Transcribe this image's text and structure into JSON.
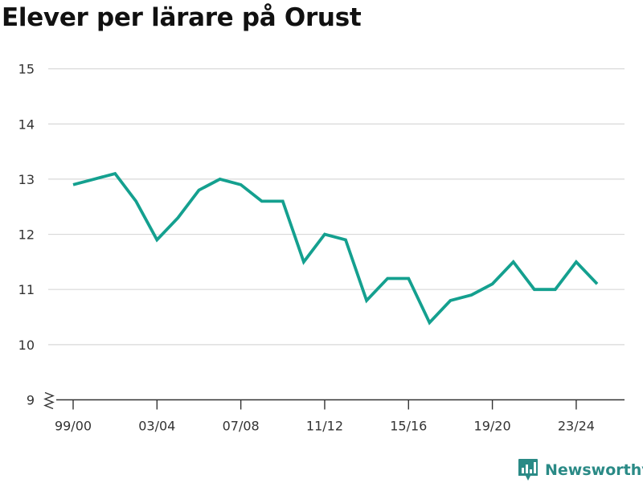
{
  "title": "Elever per lärare på Orust",
  "brand": {
    "name": "Newsworthy",
    "logo_icon": "bar-chart-speech-bubble-icon"
  },
  "colors": {
    "line": "#14a08f",
    "grid": "#d9d9d9",
    "axis": "#333333",
    "brand": "#2a8a86"
  },
  "chart_data": {
    "type": "line",
    "title": "Elever per lärare på Orust",
    "xlabel": "",
    "ylabel": "",
    "ylim": [
      9,
      15
    ],
    "y_axis_break": true,
    "grid": "horizontal",
    "yticks": [
      9,
      10,
      11,
      12,
      13,
      14,
      15
    ],
    "x_tick_labels": [
      {
        "index": 0,
        "label": "99/00"
      },
      {
        "index": 4,
        "label": "03/04"
      },
      {
        "index": 8,
        "label": "07/08"
      },
      {
        "index": 12,
        "label": "11/12"
      },
      {
        "index": 16,
        "label": "15/16"
      },
      {
        "index": 20,
        "label": "19/20"
      },
      {
        "index": 24,
        "label": "23/24"
      }
    ],
    "series": [
      {
        "values": [
          12.9,
          13.0,
          13.1,
          12.6,
          11.9,
          12.3,
          12.8,
          13.0,
          12.9,
          12.6,
          12.6,
          11.5,
          12.0,
          11.9,
          10.8,
          11.2,
          11.2,
          10.4,
          10.8,
          10.9,
          11.1,
          11.5,
          11.0,
          11.0,
          11.5,
          11.1
        ]
      }
    ]
  }
}
